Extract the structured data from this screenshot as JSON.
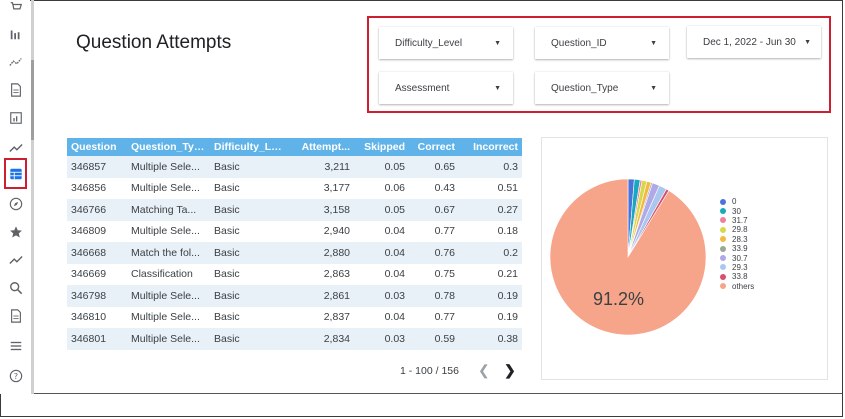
{
  "page": {
    "title": "Question Attempts"
  },
  "sidebar": {
    "items": [
      {
        "icon": "bar-chart-icon"
      },
      {
        "icon": "timeline-icon"
      },
      {
        "icon": "document-icon"
      },
      {
        "icon": "report-icon"
      },
      {
        "icon": "trending-up-icon"
      },
      {
        "icon": "table-icon",
        "active": true
      },
      {
        "icon": "compass-icon"
      },
      {
        "icon": "star-icon"
      },
      {
        "icon": "trend-icon"
      },
      {
        "icon": "search-icon"
      },
      {
        "icon": "document-icon"
      },
      {
        "icon": "list-icon"
      },
      {
        "icon": "help-icon"
      }
    ]
  },
  "filters": {
    "difficulty_level": "Difficulty_Level",
    "question_id": "Question_ID",
    "date_range": "Dec 1, 2022 - Jun 30",
    "assessment": "Assessment",
    "question_type": "Question_Type"
  },
  "table": {
    "headers": [
      "Question",
      "Question_Type",
      "Difficulty_Le...",
      "Attempt...",
      "Skipped",
      "Correct",
      "Incorrect"
    ],
    "rows": [
      [
        "346857",
        "Multiple Sele...",
        "Basic",
        "3,211",
        "0.05",
        "0.65",
        "0.3"
      ],
      [
        "346856",
        "Multiple Sele...",
        "Basic",
        "3,177",
        "0.06",
        "0.43",
        "0.51"
      ],
      [
        "346766",
        "Matching Ta...",
        "Basic",
        "3,158",
        "0.05",
        "0.67",
        "0.27"
      ],
      [
        "346809",
        "Multiple Sele...",
        "Basic",
        "2,940",
        "0.04",
        "0.77",
        "0.18"
      ],
      [
        "346668",
        "Match the fol...",
        "Basic",
        "2,880",
        "0.04",
        "0.76",
        "0.2"
      ],
      [
        "346669",
        "Classification",
        "Basic",
        "2,863",
        "0.04",
        "0.75",
        "0.21"
      ],
      [
        "346798",
        "Multiple Sele...",
        "Basic",
        "2,861",
        "0.03",
        "0.78",
        "0.19"
      ],
      [
        "346810",
        "Multiple Sele...",
        "Basic",
        "2,837",
        "0.04",
        "0.77",
        "0.19"
      ],
      [
        "346801",
        "Multiple Sele...",
        "Basic",
        "2,834",
        "0.03",
        "0.59",
        "0.38"
      ]
    ],
    "pagination": "1 - 100 / 156",
    "prev_icon": "chevron-left-icon",
    "next_icon": "chevron-right-icon"
  },
  "chart_data": {
    "type": "pie",
    "labels": [
      "0",
      "30",
      "31.7",
      "29.8",
      "28.3",
      "33.9",
      "30.7",
      "29.3",
      "33.8",
      "others"
    ],
    "values": [
      1.3,
      1.2,
      0.4,
      1.0,
      0.9,
      0.3,
      1.5,
      1.6,
      0.6,
      91.2
    ],
    "colors": [
      "#4a74d9",
      "#17a9bf",
      "#f07fa0",
      "#d6d94a",
      "#f5b942",
      "#9aa898",
      "#b0a8e8",
      "#a8c8f0",
      "#d9506f",
      "#f7a58a"
    ],
    "slice_label": "91.2%",
    "legend_position": "right"
  },
  "colors": {
    "accent": "#5fb3e8",
    "highlight": "#cc1f2f",
    "row_alt": "#e8f1f8"
  }
}
